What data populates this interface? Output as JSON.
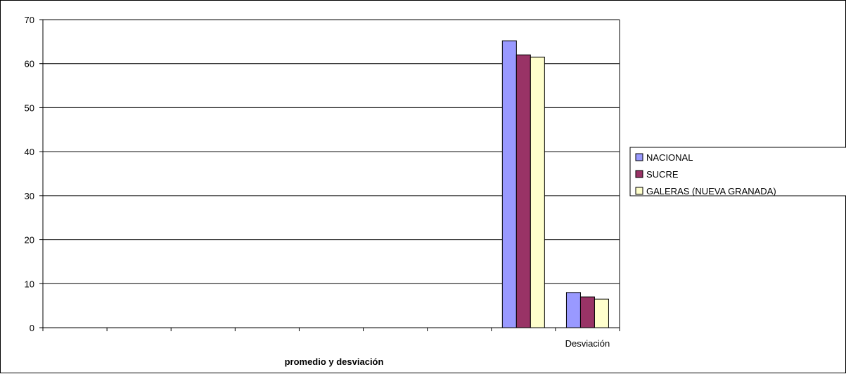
{
  "chart_data": {
    "type": "bar",
    "title": "",
    "xlabel": "promedio y desviación",
    "ylabel": "",
    "ylim": [
      0,
      70
    ],
    "yticks": [
      0,
      10,
      20,
      30,
      40,
      50,
      60,
      70
    ],
    "categories": [
      "",
      "",
      "",
      "",
      "",
      "",
      "",
      "",
      "Desviación"
    ],
    "series": [
      {
        "name": "NACIONAL",
        "color": "#9999ff",
        "values": [
          null,
          null,
          null,
          null,
          null,
          null,
          null,
          65.2,
          8.0
        ]
      },
      {
        "name": "SUCRE",
        "color": "#993366",
        "values": [
          null,
          null,
          null,
          null,
          null,
          null,
          null,
          62.0,
          7.0
        ]
      },
      {
        "name": "GALERAS (NUEVA GRANADA)",
        "color": "#ffffcc",
        "values": [
          null,
          null,
          null,
          null,
          null,
          null,
          null,
          61.5,
          6.5
        ]
      }
    ],
    "grid": true,
    "legend_position": "right"
  }
}
